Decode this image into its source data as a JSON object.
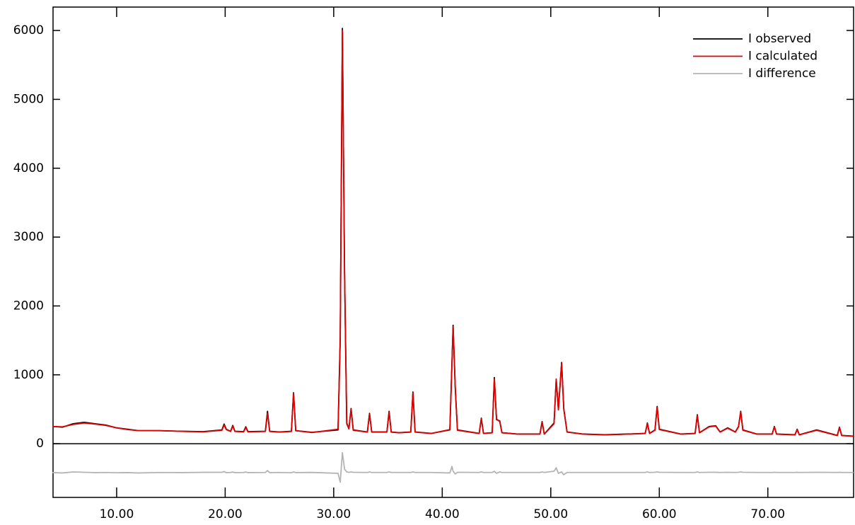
{
  "chart_data": {
    "type": "line",
    "x": [
      4.1,
      5,
      6,
      7,
      8,
      9,
      10,
      11,
      12,
      14,
      16,
      18,
      19.7,
      19.9,
      20.1,
      20.5,
      20.7,
      20.9,
      21.7,
      21.9,
      22.1,
      23.7,
      23.9,
      24.1,
      25,
      26.1,
      26.3,
      26.5,
      28,
      30.4,
      30.6,
      30.8,
      31,
      31.2,
      31.4,
      31.6,
      31.8,
      33.1,
      33.3,
      33.5,
      34.9,
      35.1,
      35.3,
      36,
      37.1,
      37.3,
      37.5,
      39,
      40.7,
      40.9,
      41,
      41.2,
      41.4,
      43.4,
      43.6,
      43.8,
      44.6,
      44.8,
      45,
      45.3,
      45.5,
      47,
      49,
      49.2,
      49.4,
      50.3,
      50.5,
      50.7,
      51,
      51.2,
      51.5,
      53,
      55,
      57,
      58.7,
      58.9,
      59.1,
      59.6,
      59.8,
      60,
      62,
      63.3,
      63.5,
      63.7,
      64.6,
      65.2,
      65.6,
      66.3,
      67,
      67.3,
      67.5,
      67.7,
      69,
      70.4,
      70.6,
      70.8,
      72.5,
      72.7,
      72.9,
      74.5,
      76.4,
      76.6,
      76.8,
      77.9
    ],
    "series": [
      {
        "name": "I observed",
        "color": "#000000",
        "values": [
          250,
          240,
          290,
          310,
          290,
          270,
          230,
          210,
          190,
          190,
          180,
          175,
          200,
          285,
          210,
          180,
          265,
          180,
          175,
          245,
          175,
          180,
          470,
          180,
          170,
          180,
          740,
          190,
          165,
          200,
          1500,
          6030,
          2500,
          300,
          220,
          510,
          200,
          170,
          440,
          170,
          170,
          470,
          170,
          160,
          170,
          750,
          170,
          150,
          200,
          1200,
          1720,
          800,
          200,
          150,
          370,
          150,
          160,
          960,
          350,
          330,
          160,
          140,
          140,
          320,
          140,
          300,
          930,
          500,
          1180,
          500,
          170,
          140,
          130,
          140,
          150,
          300,
          150,
          200,
          540,
          210,
          140,
          150,
          420,
          160,
          250,
          260,
          170,
          230,
          170,
          250,
          470,
          200,
          140,
          140,
          250,
          140,
          130,
          210,
          130,
          200,
          120,
          240,
          120,
          110
        ]
      },
      {
        "name": "I calculated",
        "color": "#e00000",
        "values": [
          250,
          245,
          280,
          300,
          285,
          265,
          230,
          205,
          190,
          188,
          180,
          172,
          195,
          270,
          205,
          178,
          255,
          178,
          172,
          235,
          172,
          178,
          440,
          178,
          168,
          178,
          730,
          188,
          162,
          210,
          1550,
          6000,
          2450,
          290,
          215,
          500,
          195,
          168,
          430,
          168,
          168,
          460,
          168,
          158,
          168,
          740,
          168,
          148,
          205,
          1180,
          1700,
          820,
          195,
          148,
          360,
          148,
          158,
          940,
          360,
          320,
          158,
          138,
          138,
          310,
          138,
          290,
          940,
          490,
          1170,
          510,
          168,
          138,
          128,
          138,
          148,
          290,
          148,
          195,
          530,
          205,
          138,
          148,
          410,
          158,
          245,
          255,
          168,
          225,
          168,
          245,
          460,
          195,
          138,
          138,
          245,
          138,
          128,
          205,
          128,
          195,
          118,
          235,
          118,
          108
        ]
      },
      {
        "name": "I difference",
        "color": "#b4b4b4",
        "values": [
          -420,
          -425,
          -410,
          -415,
          -420,
          -418,
          -422,
          -420,
          -425,
          -418,
          -420,
          -416,
          -415,
          -405,
          -420,
          -418,
          -412,
          -420,
          -418,
          -412,
          -420,
          -418,
          -390,
          -420,
          -418,
          -422,
          -410,
          -420,
          -417,
          -430,
          -560,
          -130,
          -370,
          -410,
          -415,
          -410,
          -415,
          -418,
          -410,
          -418,
          -418,
          -410,
          -418,
          -418,
          -418,
          -410,
          -418,
          -418,
          -425,
          -330,
          -400,
          -440,
          -415,
          -418,
          -410,
          -418,
          -418,
          -400,
          -430,
          -410,
          -418,
          -418,
          -418,
          -410,
          -418,
          -400,
          -350,
          -430,
          -410,
          -450,
          -418,
          -418,
          -418,
          -418,
          -418,
          -410,
          -418,
          -415,
          -410,
          -415,
          -418,
          -418,
          -410,
          -418,
          -415,
          -415,
          -418,
          -415,
          -418,
          -415,
          -410,
          -415,
          -418,
          -418,
          -415,
          -418,
          -418,
          -415,
          -418,
          -415,
          -418,
          -415,
          -418,
          -418
        ]
      }
    ],
    "xlim": [
      4.14,
      77.9
    ],
    "ylim": [
      -780,
      6340
    ],
    "xticks": [
      {
        "value": 10,
        "label": "10.00"
      },
      {
        "value": 20,
        "label": "20.00"
      },
      {
        "value": 30,
        "label": "30.00"
      },
      {
        "value": 40,
        "label": "40.00"
      },
      {
        "value": 50,
        "label": "50.00"
      },
      {
        "value": 60,
        "label": "60.00"
      },
      {
        "value": 70,
        "label": "70.00"
      }
    ],
    "yticks": [
      0,
      1000,
      2000,
      3000,
      4000,
      5000,
      6000
    ],
    "legend": "top-right"
  }
}
